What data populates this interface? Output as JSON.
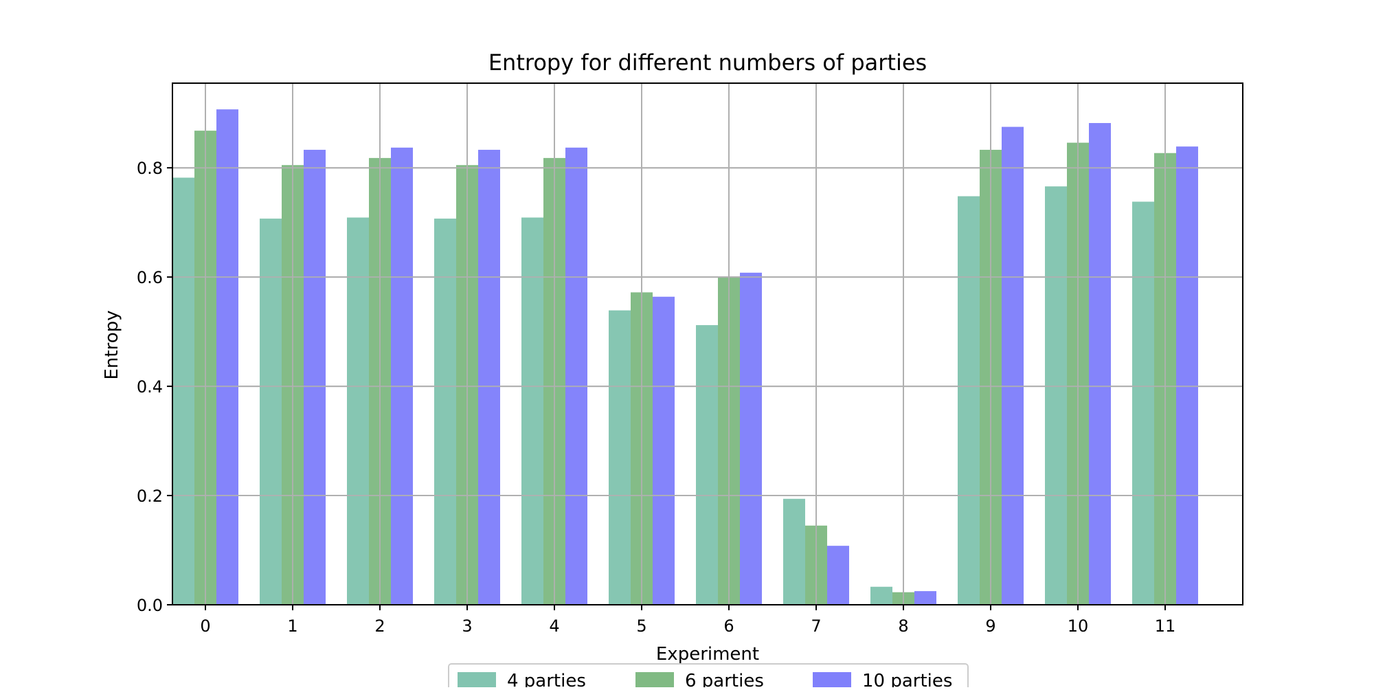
{
  "chart_data": {
    "type": "bar",
    "title": "Entropy for different numbers of parties",
    "xlabel": "Experiment",
    "ylabel": "Entropy",
    "categories": [
      "0",
      "1",
      "2",
      "3",
      "4",
      "5",
      "6",
      "7",
      "8",
      "9",
      "10",
      "11"
    ],
    "ylim": [
      0,
      0.955
    ],
    "yticks": [
      "0.0",
      "0.2",
      "0.4",
      "0.6",
      "0.8"
    ],
    "grid": true,
    "legend_position": "bottom-center",
    "series": [
      {
        "name": "4 parties",
        "color": "#82c4b0",
        "values": [
          0.782,
          0.707,
          0.709,
          0.707,
          0.709,
          0.539,
          0.512,
          0.194,
          0.033,
          0.748,
          0.766,
          0.738
        ]
      },
      {
        "name": "6 parties",
        "color": "#80ba83",
        "values": [
          0.868,
          0.805,
          0.818,
          0.805,
          0.818,
          0.572,
          0.599,
          0.145,
          0.023,
          0.833,
          0.846,
          0.827
        ]
      },
      {
        "name": "10 parties",
        "color": "#8080fb",
        "values": [
          0.907,
          0.833,
          0.837,
          0.833,
          0.837,
          0.564,
          0.608,
          0.108,
          0.025,
          0.875,
          0.882,
          0.839
        ]
      }
    ]
  }
}
